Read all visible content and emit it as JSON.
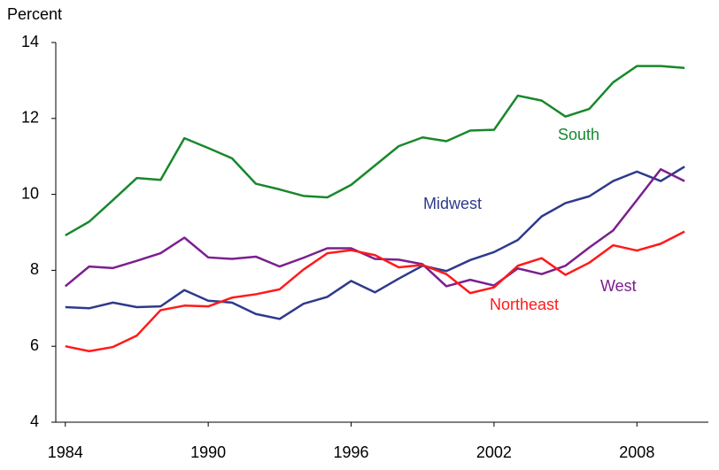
{
  "chart_data": {
    "type": "line",
    "y_label": "Percent",
    "x": [
      1984,
      1985,
      1986,
      1987,
      1988,
      1989,
      1990,
      1991,
      1992,
      1993,
      1994,
      1995,
      1996,
      1997,
      1998,
      1999,
      2000,
      2001,
      2002,
      2003,
      2004,
      2005,
      2006,
      2007,
      2008,
      2009,
      2010
    ],
    "series": [
      {
        "name": "South",
        "color": "#17882c",
        "values": [
          8.92,
          9.28,
          9.85,
          10.43,
          10.38,
          11.48,
          11.22,
          10.95,
          10.28,
          10.13,
          9.96,
          9.92,
          10.25,
          10.76,
          11.27,
          11.5,
          11.4,
          11.68,
          11.7,
          12.6,
          12.47,
          12.05,
          12.25,
          12.95,
          13.38,
          13.38,
          13.33
        ]
      },
      {
        "name": "Midwest",
        "color": "#2e3a8c",
        "values": [
          7.03,
          7.0,
          7.15,
          7.03,
          7.05,
          7.48,
          7.2,
          7.15,
          6.85,
          6.72,
          7.12,
          7.3,
          7.72,
          7.42,
          7.78,
          8.12,
          7.98,
          8.27,
          8.48,
          8.8,
          9.42,
          9.77,
          9.95,
          10.35,
          10.6,
          10.35,
          10.73
        ]
      },
      {
        "name": "West",
        "color": "#7b1f8f",
        "values": [
          7.58,
          8.1,
          8.06,
          8.25,
          8.45,
          8.86,
          8.34,
          8.3,
          8.36,
          8.1,
          8.33,
          8.58,
          8.58,
          8.3,
          8.28,
          8.16,
          7.58,
          7.75,
          7.6,
          8.05,
          7.9,
          8.12,
          8.6,
          9.05,
          9.85,
          10.66,
          10.35
        ]
      },
      {
        "name": "Northeast",
        "color": "#ff1a1a",
        "values": [
          6.0,
          5.87,
          5.98,
          6.28,
          6.95,
          7.07,
          7.05,
          7.28,
          7.37,
          7.5,
          8.02,
          8.45,
          8.53,
          8.4,
          8.08,
          8.14,
          7.9,
          7.4,
          7.55,
          8.12,
          8.32,
          7.88,
          8.2,
          8.66,
          8.52,
          8.7,
          9.02
        ]
      }
    ],
    "xlim": [
      1983.6,
      2011
    ],
    "xticks": [
      1984,
      1990,
      1996,
      2002,
      2008
    ],
    "ylim": [
      4,
      14
    ],
    "yticks": [
      4,
      6,
      8,
      10,
      12,
      14
    ]
  }
}
